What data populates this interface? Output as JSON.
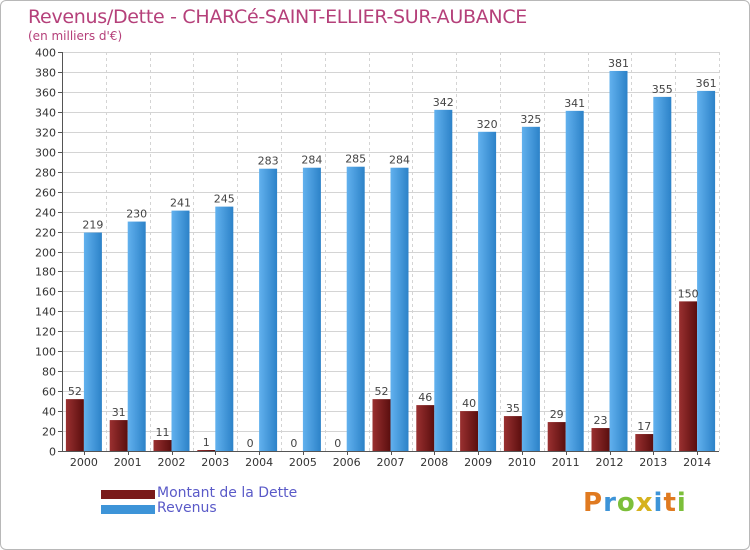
{
  "header": {
    "title": "Revenus/Dette - CHARCé-SAINT-ELLIER-SUR-AUBANCE",
    "subtitle": "(en milliers d'€)"
  },
  "chart_data": {
    "type": "bar",
    "title": "Revenus/Dette - CHARCé-SAINT-ELLIER-SUR-AUBANCE",
    "subtitle": "(en milliers d'€)",
    "xlabel": "",
    "ylabel": "",
    "ylim": [
      0,
      400
    ],
    "ytick_step": 20,
    "grid": true,
    "legend_position": "bottom-left",
    "categories": [
      "2000",
      "2001",
      "2002",
      "2003",
      "2004",
      "2005",
      "2006",
      "2007",
      "2008",
      "2009",
      "2010",
      "2011",
      "2012",
      "2013",
      "2014"
    ],
    "series": [
      {
        "name": "Montant de la Dette",
        "color": "#7a1a1a",
        "values": [
          52,
          31,
          11,
          1,
          0,
          0,
          0,
          52,
          46,
          40,
          35,
          29,
          23,
          17,
          150
        ]
      },
      {
        "name": "Revenus",
        "color": "#3d94d8",
        "values": [
          219,
          230,
          241,
          245,
          283,
          284,
          285,
          284,
          342,
          320,
          325,
          341,
          381,
          355,
          361
        ]
      }
    ]
  },
  "legend": {
    "items": [
      {
        "label": "Montant de la Dette",
        "color": "#7a1a1a"
      },
      {
        "label": "Revenus",
        "color": "#3d94d8"
      }
    ]
  },
  "logo": {
    "letters": [
      "P",
      "r",
      "o",
      "x",
      "i",
      "t",
      "i"
    ],
    "colors": [
      "#e07a20",
      "#3d94d8",
      "#7cbf3a",
      "#d6b21e",
      "#3d94d8",
      "#e07a20",
      "#7cbf3a"
    ]
  }
}
